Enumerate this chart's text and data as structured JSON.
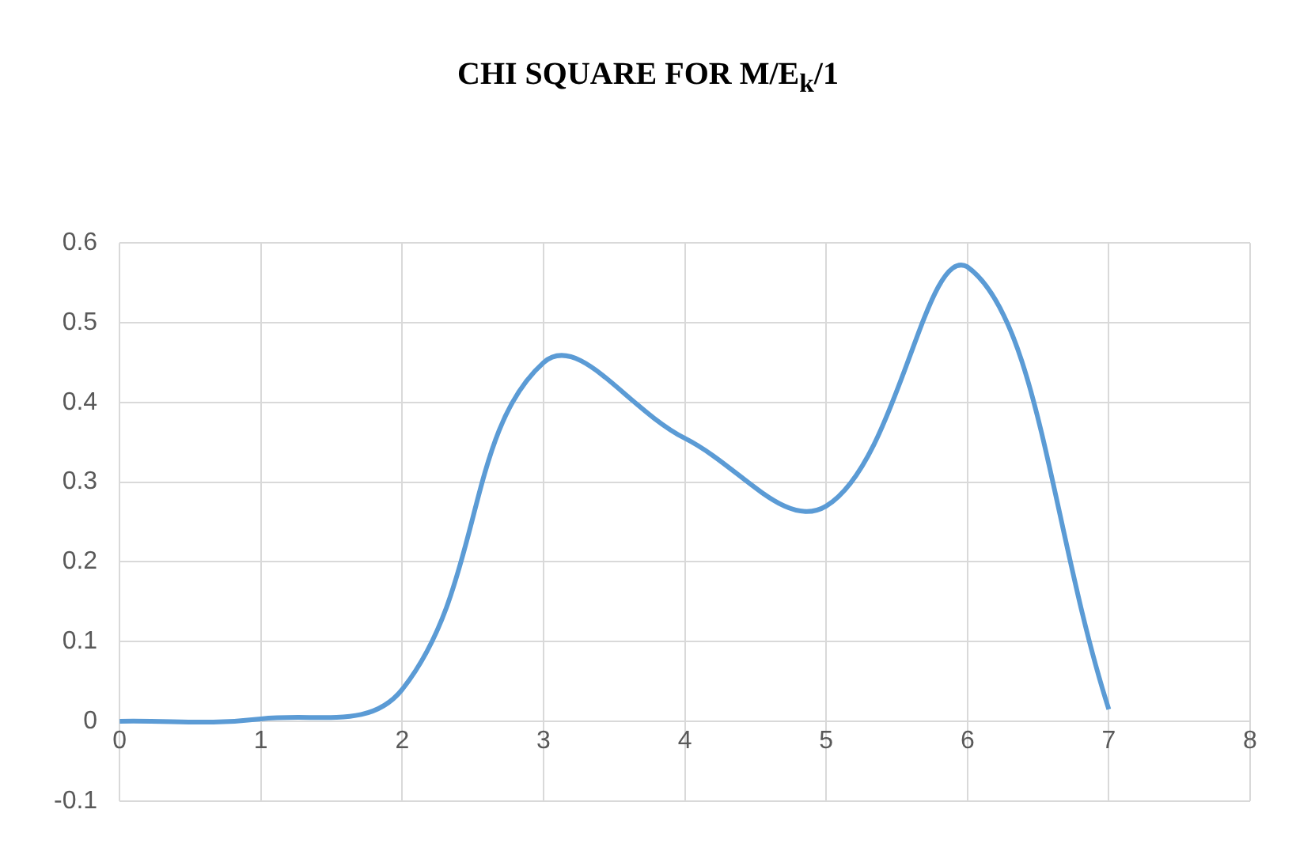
{
  "chart_data": {
    "type": "line",
    "title": "CHI SQUARE FOR M/E$_{k}$/1",
    "x": [
      0,
      1,
      2,
      3,
      4,
      5,
      6,
      7
    ],
    "series": [
      {
        "color": "#5b9bd5",
        "values": [
          0,
          0.003,
          0.04,
          0.45,
          0.355,
          0.27,
          0.57,
          0.015
        ]
      }
    ],
    "xlim": [
      0,
      8
    ],
    "xticks": [
      0,
      1,
      2,
      3,
      4,
      5,
      6,
      7,
      8
    ],
    "ylim": [
      -0.1,
      0.6
    ],
    "yticks": [
      -0.1,
      0,
      0.1,
      0.2,
      0.3,
      0.4,
      0.5,
      0.6
    ],
    "grid": true,
    "legend": false,
    "marker": "none",
    "line_style": "solid"
  }
}
